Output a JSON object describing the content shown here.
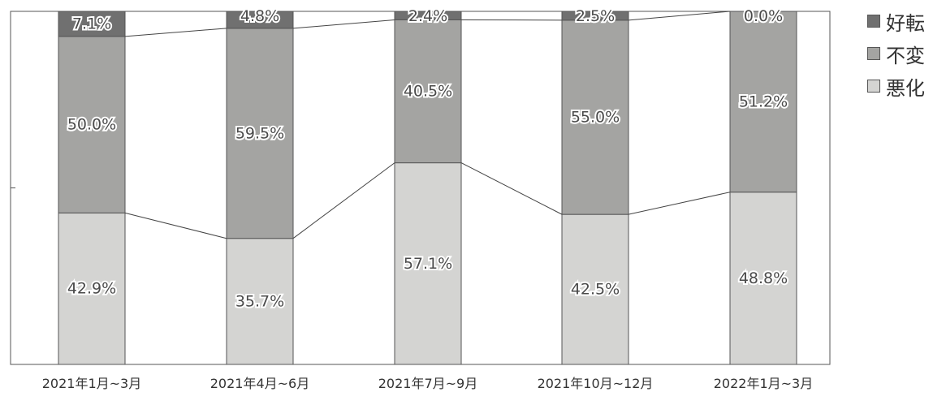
{
  "chart_data": {
    "type": "bar",
    "stacked": true,
    "categories": [
      "2021年1月~3月",
      "2021年4月~6月",
      "2021年7月~9月",
      "2021年10月~12月",
      "2022年1月~3月"
    ],
    "series": [
      {
        "name": "悪化",
        "values": [
          42.9,
          35.7,
          57.1,
          42.5,
          48.8
        ],
        "labels": [
          "42.9%",
          "35.7%",
          "57.1%",
          "42.5%",
          "48.8%"
        ],
        "color": "#d4d4d2"
      },
      {
        "name": "不変",
        "values": [
          50.0,
          59.5,
          40.5,
          55.0,
          51.2
        ],
        "labels": [
          "50.0%",
          "59.5%",
          "40.5%",
          "55.0%",
          "51.2%"
        ],
        "color": "#a4a4a2"
      },
      {
        "name": "好転",
        "values": [
          7.1,
          4.8,
          2.4,
          2.5,
          0.0
        ],
        "labels": [
          "7.1%",
          "4.8%",
          "2.4%",
          "2.5%",
          "0.0%"
        ],
        "color": "#707070"
      }
    ],
    "legend": [
      {
        "name": "好転",
        "color": "#707070"
      },
      {
        "name": "不変",
        "color": "#a4a4a2"
      },
      {
        "name": "悪化",
        "color": "#d4d4d2"
      }
    ],
    "ylim": [
      0,
      100
    ],
    "legend_position": "right",
    "series_lines": true,
    "grid": false
  }
}
